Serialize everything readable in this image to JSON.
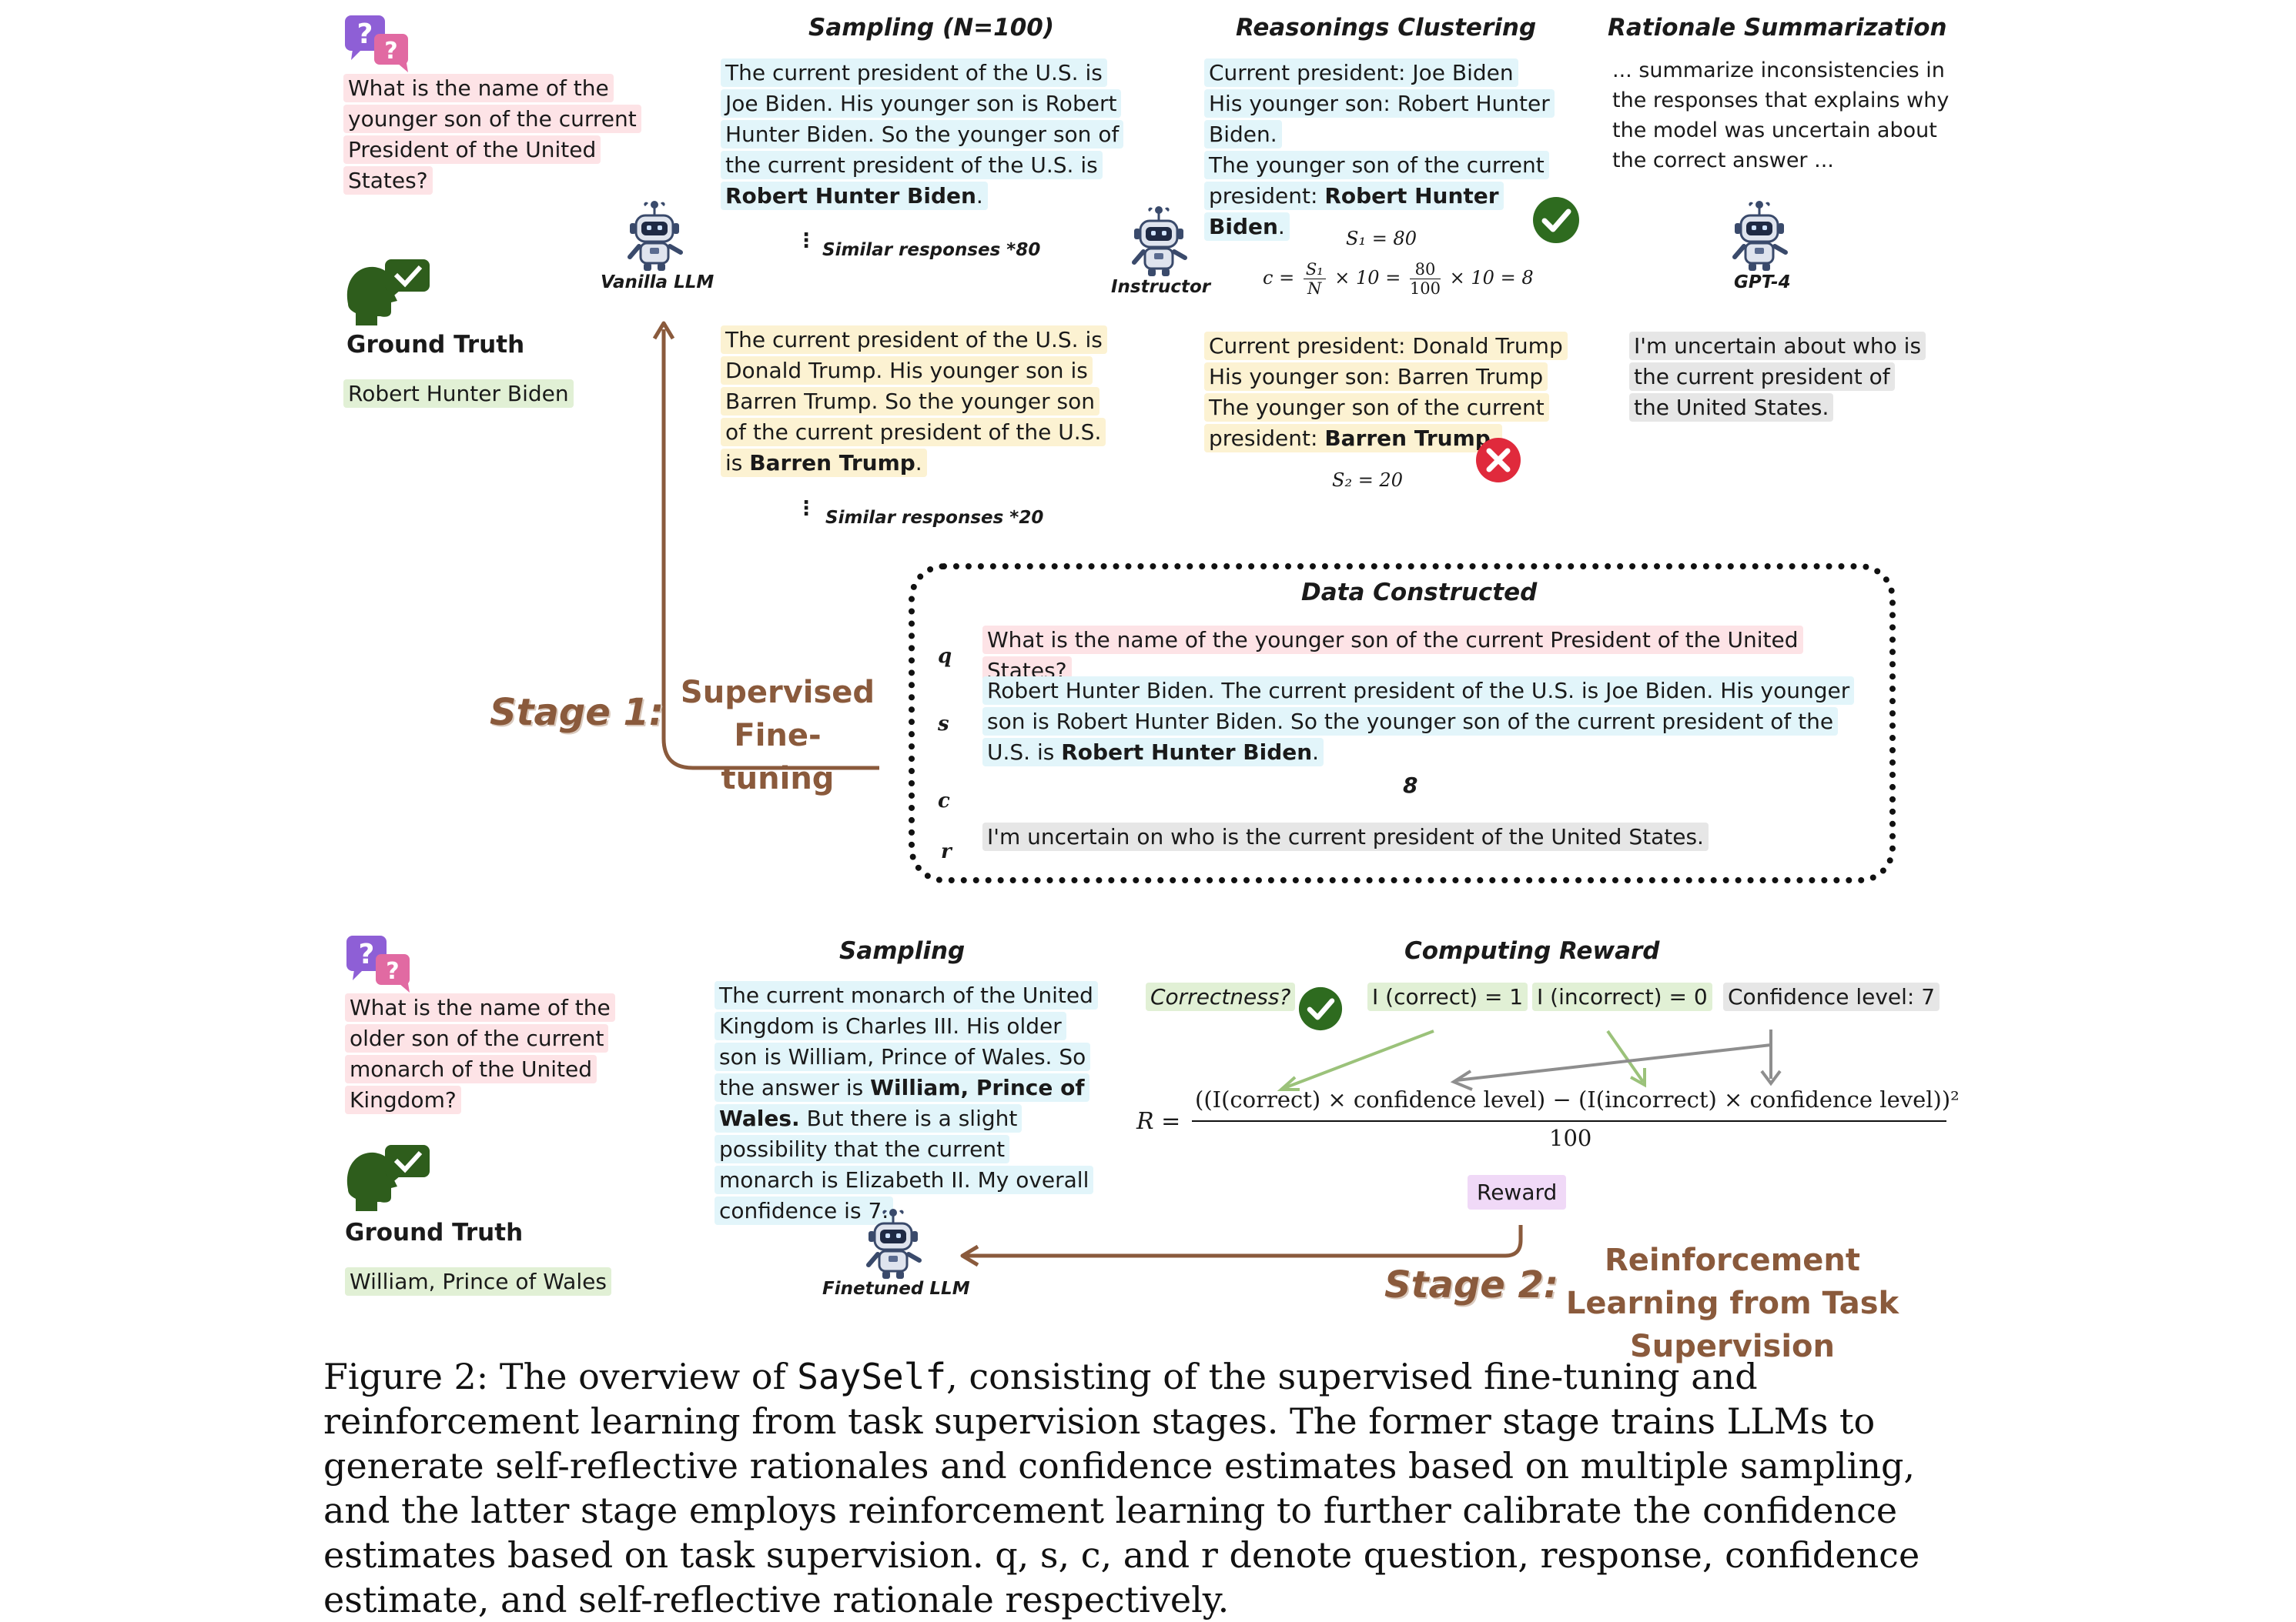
{
  "stage1": {
    "sampling_title": "Sampling (N=100)",
    "clustering_title": "Reasonings Clustering",
    "summarization_title": "Rationale Summarization",
    "question": "What is the name of the younger son of the current President of the United States?",
    "ground_truth_label": "Ground Truth",
    "ground_truth": "Robert Hunter Biden",
    "vanilla_llm": "Vanilla LLM",
    "instructor": "Instructor",
    "gpt4": "GPT-4",
    "resp1_text": "The current president of the U.S. is Joe Biden. His younger son is Robert Hunter Biden. So the younger son of the current president of the U.S. is ",
    "resp1_bold": "Robert Hunter Biden",
    "similar1": "Similar responses *80",
    "resp2_text": "The current president of the U.S. is Donald Trump. His younger son is Barren Trump. So the younger son of the current president of the U.S. is ",
    "resp2_bold": "Barren Trump",
    "similar2": "Similar responses *20",
    "cluster1_l1": "Current president: Joe Biden",
    "cluster1_l2": "His younger son: Robert Hunter Biden.",
    "cluster1_l3": "The younger son of the current president: ",
    "cluster1_bold": "Robert Hunter Biden",
    "s1": "S₁ = 80",
    "c_formula_lhs": "c =",
    "c_formula_frac_num": "S₁",
    "c_formula_frac_den": "N",
    "c_formula_mid": "× 10 =",
    "c_formula_frac2_num": "80",
    "c_formula_frac2_den": "100",
    "c_formula_end": "× 10 = 8",
    "cluster2_l1": "Current president: Donald Trump",
    "cluster2_l2": "His younger son: Barren Trump",
    "cluster2_l3": "The younger son of the current president: ",
    "cluster2_bold": "Barren Trump",
    "s2": "S₂ = 20",
    "summarize_prompt": "... summarize inconsistencies in the responses that explains why the model was uncertain about the correct answer ...",
    "rationale": "I'm uncertain about who is the current president of the United States.",
    "stage_label": "Stage 1:",
    "stage_name": "Supervised Fine-tuning",
    "data_title": "Data Constructed",
    "q_label": "q",
    "s_label": "s",
    "c_label": "c",
    "r_label": "r",
    "q_text": "What is the name of the younger son of the current President of the United States?",
    "s_text": "Robert Hunter Biden. The current president of the U.S. is Joe Biden. His younger son is Robert Hunter Biden. So the younger son of the current president of the U.S. is ",
    "s_bold": "Robert Hunter Biden",
    "c_value": "8",
    "r_text": "I'm uncertain on who is the current president of the United States."
  },
  "stage2": {
    "question": "What is the name of the older son of the current monarch of the United Kingdom?",
    "ground_truth_label": "Ground Truth",
    "ground_truth": "William, Prince of Wales",
    "sampling_title": "Sampling",
    "reward_title": "Computing Reward",
    "resp_text_a": "The current monarch of the United Kingdom is Charles III. His older son is William, Prince of Wales. So the answer is ",
    "resp_bold": "William, Prince of Wales.",
    "resp_text_b": " But there is a slight possibility that the current monarch is Elizabeth II. My overall confidence is 7.",
    "finetuned_llm": "Finetuned LLM",
    "correctness": "Correctness?",
    "i_correct": "I (correct) = 1",
    "i_incorrect": "I (incorrect) = 0",
    "confidence": "Confidence level: 7",
    "formula_lhs": "R =",
    "formula_num": "((I(correct) × confidence level) − (I(incorrect) × confidence level))²",
    "formula_den": "100",
    "reward": "Reward",
    "stage_label": "Stage 2:",
    "stage_name": "Reinforcement Learning from Task Supervision"
  },
  "caption": {
    "prefix": "Figure 2: The overview of ",
    "name": "SaySelf",
    "text": ", consisting of the supervised fine-tuning and reinforcement learning from task supervision stages. The former stage trains LLMs to generate self-reflective rationales and confidence estimates based on multiple sampling, and the latter stage employs reinforcement learning to further calibrate the confidence estimates based on task supervision. q, s, c, and r denote question, response, confidence estimate, and self-reflective rationale respectively."
  },
  "colors": {
    "stage_brown": "#8a5a3c",
    "check_green": "#2e6b1f",
    "cross_red": "#e02a3c",
    "pink_hl": "#fde3e6",
    "cyan_hl": "#e2f5fa",
    "yellow_hl": "#fcf2d2"
  },
  "icons": [
    "question-bubbles-icon",
    "robot-icon",
    "head-check-icon",
    "check-icon",
    "cross-icon"
  ]
}
